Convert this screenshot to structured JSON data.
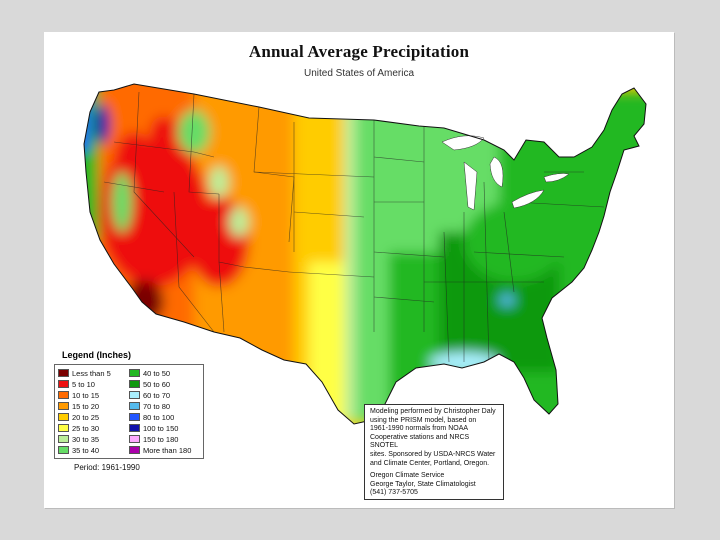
{
  "title": "Annual Average Precipitation",
  "subtitle": "United States of America",
  "legend": {
    "title": "Legend (Inches)",
    "items": [
      {
        "label": "Less than 5",
        "color": "#7a0000"
      },
      {
        "label": "40 to 50",
        "color": "#22b822"
      },
      {
        "label": "5 to 10",
        "color": "#ee1111"
      },
      {
        "label": "50 to 60",
        "color": "#119911"
      },
      {
        "label": "10 to 15",
        "color": "#ff6a00"
      },
      {
        "label": "60 to 70",
        "color": "#aaf0ff"
      },
      {
        "label": "15 to 20",
        "color": "#ff9a00"
      },
      {
        "label": "70 to 80",
        "color": "#55bbee"
      },
      {
        "label": "20 to 25",
        "color": "#ffcc00"
      },
      {
        "label": "80 to 100",
        "color": "#2255ff"
      },
      {
        "label": "25 to 30",
        "color": "#ffff44"
      },
      {
        "label": "100 to 150",
        "color": "#1111aa"
      },
      {
        "label": "30 to 35",
        "color": "#bbee99"
      },
      {
        "label": "150 to 180",
        "color": "#ffaaff"
      },
      {
        "label": "35 to 40",
        "color": "#66dd66"
      },
      {
        "label": "More than 180",
        "color": "#aa00aa"
      }
    ],
    "period": "Period: 1961-1990"
  },
  "credits": {
    "lines": [
      "Modeling performed by Christopher Daly",
      "using the PRISM model, based on",
      "1961-1990 normals from NOAA",
      "Cooperative stations and NRCS SNOTEL",
      "sites. Sponsored by USDA-NRCS Water",
      "and Climate Center, Portland, Oregon."
    ],
    "contact": [
      "Oregon Climate Service",
      "George Taylor, State Climatologist",
      "(541) 737-5705"
    ]
  }
}
